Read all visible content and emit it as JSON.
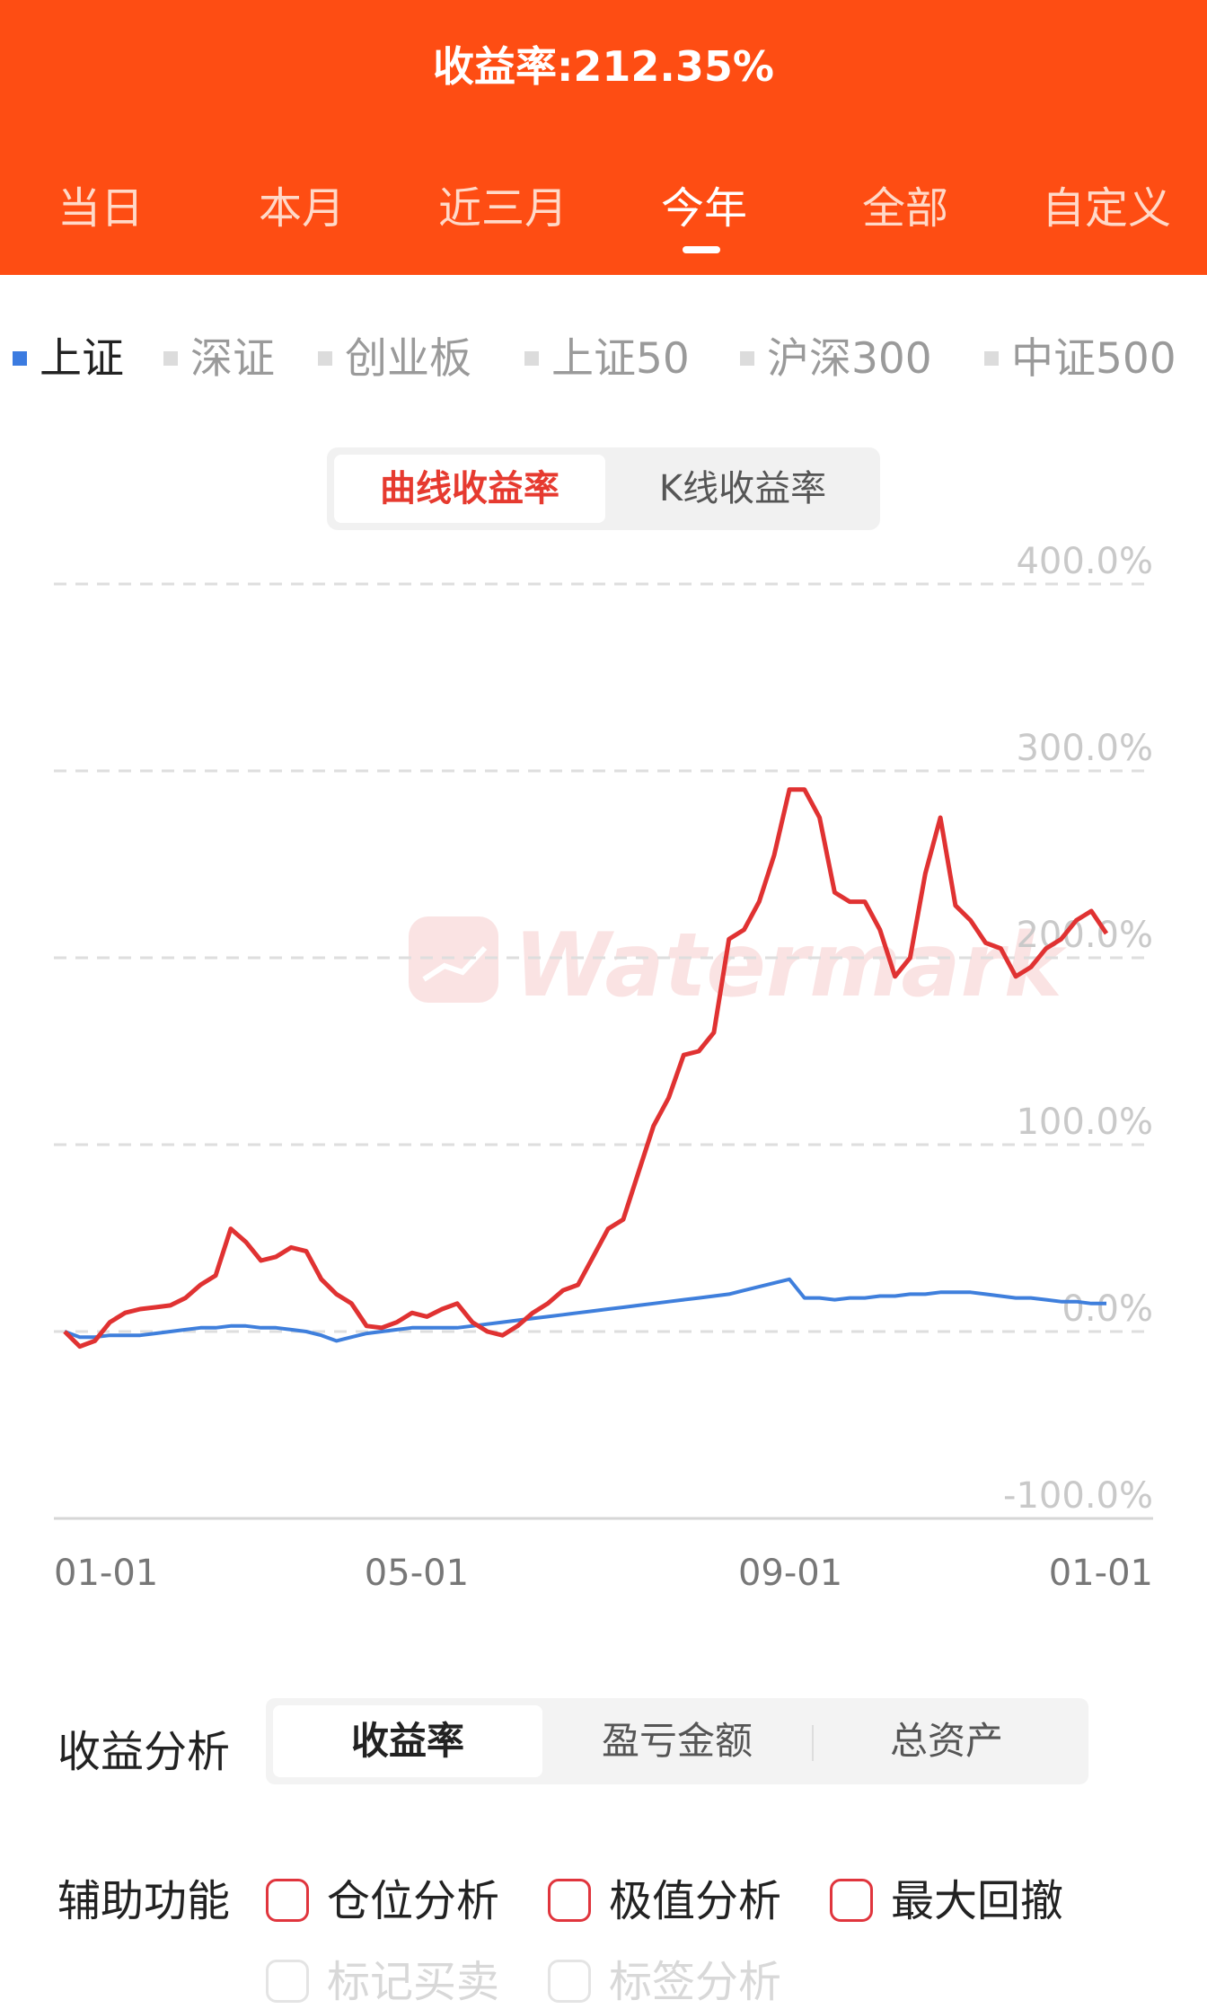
{
  "header": {
    "title": "收益率:212.35%",
    "tabs": [
      "当日",
      "本月",
      "近三月",
      "今年",
      "全部",
      "自定义"
    ],
    "active_tab": "今年"
  },
  "indices": {
    "items": [
      "上证",
      "深证",
      "创业板",
      "上证50",
      "沪深300",
      "中证500"
    ],
    "active": "上证",
    "active_color": "#3b7be0"
  },
  "chart_mode": {
    "options": [
      "曲线收益率",
      "K线收益率"
    ],
    "active": "曲线收益率"
  },
  "chart_data": {
    "type": "line",
    "y_ticks": [
      "400.0%",
      "300.0%",
      "200.0%",
      "100.0%",
      "0.0%",
      "-100.0%"
    ],
    "ylim": [
      -100,
      400
    ],
    "x_ticks": [
      "01-01",
      "05-01",
      "09-01",
      "01-01"
    ],
    "series": [
      {
        "color": "#e03232",
        "values": [
          0,
          -8,
          -5,
          5,
          10,
          12,
          13,
          14,
          18,
          25,
          30,
          55,
          48,
          38,
          40,
          45,
          43,
          28,
          20,
          15,
          3,
          2,
          5,
          10,
          8,
          12,
          15,
          5,
          0,
          -2,
          3,
          10,
          15,
          22,
          25,
          40,
          55,
          60,
          85,
          110,
          125,
          148,
          150,
          160,
          210,
          215,
          230,
          255,
          290,
          290,
          275,
          235,
          230,
          230,
          215,
          190,
          200,
          245,
          275,
          228,
          220,
          208,
          205,
          190,
          195,
          205,
          210,
          220,
          225,
          213
        ]
      },
      {
        "color": "#3f7fdc",
        "values": [
          0,
          -3,
          -3,
          -2,
          -2,
          -2,
          -1,
          0,
          1,
          2,
          2,
          3,
          3,
          2,
          2,
          1,
          0,
          -2,
          -5,
          -3,
          -1,
          0,
          1,
          2,
          2,
          2,
          2,
          3,
          4,
          5,
          6,
          7,
          8,
          9,
          10,
          11,
          12,
          13,
          14,
          15,
          16,
          17,
          18,
          19,
          20,
          22,
          24,
          26,
          28,
          18,
          18,
          17,
          18,
          18,
          19,
          19,
          20,
          20,
          21,
          21,
          21,
          20,
          19,
          18,
          18,
          17,
          16,
          16,
          15,
          15
        ]
      }
    ]
  },
  "analysis": {
    "label": "收益分析",
    "tabs": [
      "收益率",
      "盈亏金额",
      "总资产"
    ],
    "active": "收益率"
  },
  "aux": {
    "label": "辅助功能",
    "options": [
      "仓位分析",
      "极值分析",
      "最大回撤"
    ],
    "disabled_options": [
      "标记买卖",
      "标签分析"
    ]
  }
}
